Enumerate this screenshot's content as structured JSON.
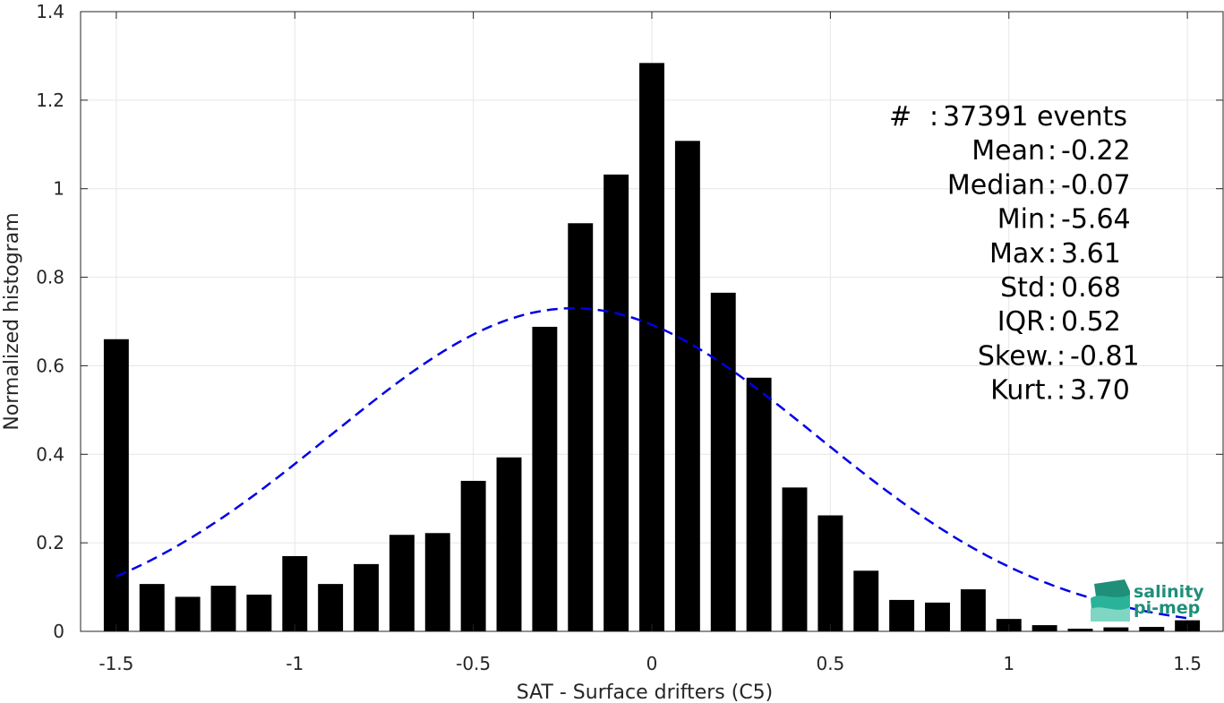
{
  "chart_data": {
    "type": "bar",
    "xlabel": "SAT - Surface drifters (C5)",
    "ylabel": "Normalized histogram",
    "xlim": [
      -1.6,
      1.6
    ],
    "ylim": [
      0,
      1.4
    ],
    "xticks": [
      -1.5,
      -1,
      -0.5,
      0,
      0.5,
      1,
      1.5
    ],
    "xtick_labels": [
      "-1.5",
      "-1",
      "-0.5",
      "0",
      "0.5",
      "1",
      "1.5"
    ],
    "yticks": [
      0,
      0.2,
      0.4,
      0.6,
      0.8,
      1,
      1.2,
      1.4
    ],
    "ytick_labels": [
      "0",
      "0.2",
      "0.4",
      "0.6",
      "0.8",
      "1",
      "1.2",
      "1.4"
    ],
    "grid": true,
    "bar_color": "#000000",
    "bar_width": 0.07,
    "bars": [
      {
        "x": -1.5,
        "y": 0.66
      },
      {
        "x": -1.4,
        "y": 0.107
      },
      {
        "x": -1.3,
        "y": 0.078
      },
      {
        "x": -1.2,
        "y": 0.103
      },
      {
        "x": -1.1,
        "y": 0.083
      },
      {
        "x": -1.0,
        "y": 0.17
      },
      {
        "x": -0.9,
        "y": 0.107
      },
      {
        "x": -0.8,
        "y": 0.152
      },
      {
        "x": -0.7,
        "y": 0.218
      },
      {
        "x": -0.6,
        "y": 0.222
      },
      {
        "x": -0.5,
        "y": 0.34
      },
      {
        "x": -0.4,
        "y": 0.393
      },
      {
        "x": -0.3,
        "y": 0.688
      },
      {
        "x": -0.2,
        "y": 0.922
      },
      {
        "x": -0.1,
        "y": 1.032
      },
      {
        "x": 0.0,
        "y": 1.284
      },
      {
        "x": 0.1,
        "y": 1.108
      },
      {
        "x": 0.2,
        "y": 0.765
      },
      {
        "x": 0.3,
        "y": 0.573
      },
      {
        "x": 0.4,
        "y": 0.325
      },
      {
        "x": 0.5,
        "y": 0.262
      },
      {
        "x": 0.6,
        "y": 0.137
      },
      {
        "x": 0.7,
        "y": 0.071
      },
      {
        "x": 0.8,
        "y": 0.065
      },
      {
        "x": 0.9,
        "y": 0.095
      },
      {
        "x": 1.0,
        "y": 0.028
      },
      {
        "x": 1.1,
        "y": 0.014
      },
      {
        "x": 1.2,
        "y": 0.006
      },
      {
        "x": 1.3,
        "y": 0.009
      },
      {
        "x": 1.4,
        "y": 0.01
      },
      {
        "x": 1.5,
        "y": 0.025
      }
    ],
    "fit_curve": {
      "style": "dashed",
      "color": "#0000e6",
      "mean": -0.22,
      "std": 0.68,
      "amplitude": 0.73,
      "x_range": [
        -1.5,
        1.5
      ]
    },
    "stats": [
      {
        "label": "#",
        "sep": ":",
        "value": "37391 events"
      },
      {
        "label": "Mean",
        "sep": ":",
        "value": "-0.22"
      },
      {
        "label": "Median",
        "sep": ":",
        "value": "-0.07"
      },
      {
        "label": "Min",
        "sep": ":",
        "value": "-5.64"
      },
      {
        "label": "Max",
        "sep": ":",
        "value": "3.61"
      },
      {
        "label": "Std",
        "sep": ":",
        "value": "0.68"
      },
      {
        "label": "IQR",
        "sep": ":",
        "value": "0.52"
      },
      {
        "label": "Skew.",
        "sep": ":",
        "value": "-0.81"
      },
      {
        "label": "Kurt.",
        "sep": ":",
        "value": "3.70"
      }
    ]
  },
  "logo": {
    "line1": "salinity",
    "line2": "pi-mep",
    "colors": [
      "#1f8f7a",
      "#2bb39a",
      "#7fd6c2"
    ]
  }
}
